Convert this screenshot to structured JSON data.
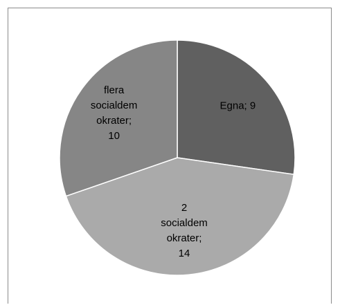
{
  "chart_data": {
    "type": "pie",
    "title": "",
    "series": [
      {
        "values": [
          9,
          14,
          10
        ]
      }
    ],
    "categories": [
      "Egna",
      "2 socialdemokrater",
      "flera socialdemokrater"
    ],
    "values": [
      9,
      14,
      10
    ],
    "slices": [
      {
        "category": "Egna",
        "value": 9,
        "color": "#606060",
        "label_lines": [
          "Egna; 9"
        ]
      },
      {
        "category": "2 socialdemokrater",
        "value": 14,
        "color": "#aaaaaa",
        "label_lines": [
          "2",
          "socialdem",
          "okrater;",
          "14"
        ]
      },
      {
        "category": "flera socialdemokrater",
        "value": 10,
        "color": "#868686",
        "label_lines": [
          "flera",
          "socialdem",
          "okrater;",
          "10"
        ]
      }
    ],
    "start_angle": "12 o'clock",
    "direction": "clockwise",
    "legend": "none"
  }
}
